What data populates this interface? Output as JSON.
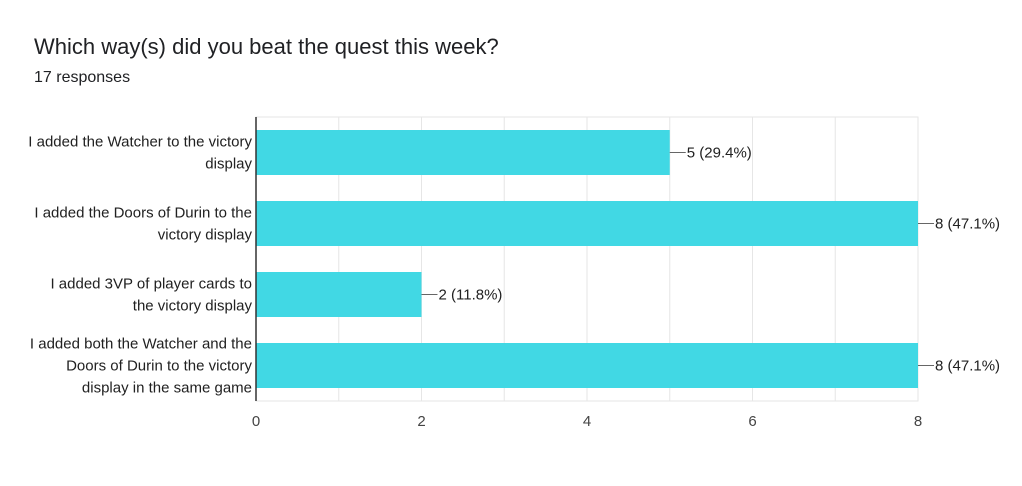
{
  "header": {
    "title": "Which way(s) did you beat the quest this week?",
    "subtitle": "17 responses"
  },
  "colors": {
    "bar": "#41d8e4",
    "grid": "#e6e6e6",
    "axis": "#333333",
    "text": "#212121"
  },
  "chart_data": {
    "type": "bar",
    "orientation": "horizontal",
    "categories": [
      [
        "I added the Watcher to the victory",
        "display"
      ],
      [
        "I added the Doors of Durin to the",
        "victory display"
      ],
      [
        "I added 3VP of player cards to",
        "the victory display"
      ],
      [
        "I added both the Watcher and the",
        "Doors of Durin to the victory",
        "display in the same game"
      ]
    ],
    "values": [
      5,
      8,
      2,
      8
    ],
    "data_labels": [
      "5 (29.4%)",
      "8 (47.1%)",
      "2 (11.8%)",
      "8 (47.1%)"
    ],
    "xlim": [
      0,
      8
    ],
    "xticks": [
      0,
      2,
      4,
      6,
      8
    ],
    "grid": true,
    "legend": "none"
  }
}
